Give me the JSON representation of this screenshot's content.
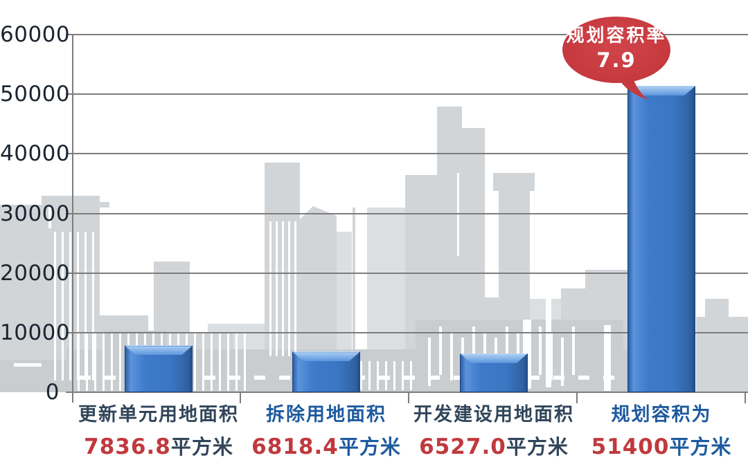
{
  "chart_data": {
    "type": "bar",
    "title": "",
    "categories": [
      "更新单元用地面积",
      "拆除用地面积",
      "开发建设用地面积",
      "规划容积为"
    ],
    "values": [
      7836.8,
      6818.4,
      6527.0,
      51400
    ],
    "unit": "平方米",
    "xlabel": "",
    "ylabel": "",
    "ylim": [
      0,
      60000
    ],
    "y_ticks": [
      0,
      10000,
      20000,
      30000,
      40000,
      50000,
      60000
    ],
    "grid": true,
    "legend": false,
    "bar_color": "#3b76c4",
    "background": "gray city skyline watermark",
    "annotation": {
      "text": "规划容积率",
      "value": "7.9",
      "applies_to": "规划容积为",
      "color": "#c5393f"
    }
  },
  "y_axis": {
    "tick_labels": [
      "60000",
      "50000",
      "40000",
      "30000",
      "20000",
      "10000",
      "0"
    ]
  },
  "callout": {
    "line1": "规划容积率",
    "line2": "7.9"
  },
  "categories": [
    {
      "name": "更新单元用地面积",
      "value": "7836.8",
      "unit": "平方米",
      "name_color": "#31455a"
    },
    {
      "name": "拆除用地面积",
      "value": "6818.4",
      "unit": "平方米",
      "name_color": "#1d5a9e"
    },
    {
      "name": "开发建设用地面积",
      "value": "6527.0",
      "unit": "平方米",
      "name_color": "#31455a"
    },
    {
      "name": "规划容积为",
      "value": "51400",
      "unit": "平方米",
      "name_color": "#1d5a9e"
    }
  ],
  "colors": {
    "value_red": "#c0393d",
    "grid": "#7c7c7c",
    "bubble_red": "#c5393f",
    "bar_blue": "#3b76c4",
    "bar_outline": "#1c4680",
    "y_label": "#1b2530"
  }
}
